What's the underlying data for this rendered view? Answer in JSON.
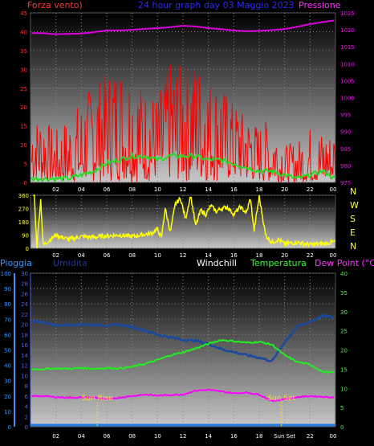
{
  "header": {
    "left": "Forza vento)",
    "center": "24 hour graph day  03 Maggio 2023",
    "right": "Pressione"
  },
  "colors": {
    "wind": "#ff0000",
    "gust_avg": "#22dd22",
    "pressure": "#dd00dd",
    "direction": "#ffff00",
    "humidity": "#1a4aa0",
    "temperature": "#22ee22",
    "dewpoint": "#ff00ff",
    "rain": "#1e7be0",
    "axis_left": "#ff3333",
    "axis_pressure": "#ff00ff",
    "axis_rain": "#3399ff",
    "axis_hum": "#4466ff",
    "axis_temp": "#33ff33",
    "sun": "#ffdd33"
  },
  "panel3_header": {
    "pioggia": "Pioggia",
    "umidita": "Umidita",
    "windchill": "Windchill",
    "temperatura": "Temperatura",
    "dewpoint": "Dew Point (°C)"
  },
  "x_ticks": [
    "02",
    "04",
    "06",
    "08",
    "10",
    "12",
    "14",
    "16",
    "18",
    "20",
    "22",
    "00"
  ],
  "x_ticks_bottom": [
    "02",
    "04",
    "06",
    "08",
    "10",
    "12",
    "14",
    "16",
    "18",
    "Sun Set",
    "22",
    "00"
  ],
  "direction_letters": [
    "N",
    "W",
    "S",
    "E",
    "N"
  ],
  "sun": {
    "rise_label": "Sun Rise",
    "set_label": "Sun Set",
    "rise_hour": 5.25,
    "set_hour": 19.75
  },
  "chart_data": [
    {
      "type": "line",
      "name_hint": "wind_pressure",
      "title": "24 hour graph day  03 Maggio 2023",
      "ylabel": "Forza vento)",
      "y2label": "Pressione",
      "ylim": [
        0,
        45
      ],
      "y2lim": [
        975,
        1025
      ],
      "yticks": [
        0,
        5,
        10,
        15,
        20,
        25,
        30,
        35,
        40,
        45
      ],
      "y2ticks": [
        975,
        980,
        985,
        990,
        995,
        1000,
        1005,
        1010,
        1015,
        1020,
        1025
      ],
      "x_hours": [
        1,
        2,
        3,
        4,
        5,
        6,
        7,
        8,
        9,
        10,
        11,
        12,
        13,
        14,
        15,
        16,
        17,
        18,
        19,
        20,
        21,
        22,
        23,
        24
      ],
      "series": [
        {
          "key": "wind",
          "values": [
            9,
            5,
            6,
            9,
            12,
            16,
            17,
            14,
            11,
            12,
            16,
            15,
            16,
            15,
            14,
            12,
            9,
            8,
            7,
            5,
            4,
            6,
            5,
            8
          ]
        },
        {
          "key": "wind_peak",
          "values": [
            17,
            14,
            18,
            22,
            27,
            29,
            32,
            30,
            25,
            23,
            32,
            31,
            33,
            28,
            26,
            21,
            18,
            15,
            18,
            10,
            11,
            15,
            14,
            12
          ]
        },
        {
          "key": "gust_avg",
          "values": [
            1,
            1,
            1,
            2,
            3,
            5,
            6,
            7,
            7,
            6,
            7,
            7,
            7,
            6,
            6,
            5,
            4,
            3,
            3,
            2,
            1,
            2,
            3,
            1
          ]
        },
        {
          "key": "pressure",
          "values": [
            1019,
            1018.7,
            1018.8,
            1018.9,
            1019.3,
            1019.8,
            1019.8,
            1020,
            1020.3,
            1020.5,
            1020.8,
            1021.2,
            1021,
            1020.5,
            1020.2,
            1019.8,
            1019.6,
            1019.7,
            1019.9,
            1020.2,
            1020.9,
            1021.7,
            1022.3,
            1022.8
          ]
        }
      ]
    },
    {
      "type": "line",
      "name_hint": "wind_direction",
      "ylim": [
        0,
        360
      ],
      "yticks": [
        0,
        90,
        180,
        270,
        360
      ],
      "x_hours": [
        0.3,
        0.5,
        0.8,
        1,
        2,
        3,
        4,
        5,
        6,
        7,
        8,
        9,
        9.5,
        10,
        10.3,
        10.6,
        11,
        11.4,
        11.8,
        12.2,
        12.6,
        13,
        13.4,
        13.8,
        14.2,
        14.6,
        15,
        15.5,
        16,
        16.5,
        17,
        17.3,
        17.6,
        18,
        18.5,
        19,
        19.5,
        20,
        21,
        22,
        23,
        24
      ],
      "values": [
        360,
        10,
        330,
        20,
        90,
        60,
        80,
        75,
        85,
        90,
        80,
        95,
        100,
        130,
        70,
        270,
        110,
        300,
        340,
        200,
        360,
        150,
        260,
        230,
        290,
        250,
        270,
        280,
        230,
        280,
        240,
        340,
        120,
        350,
        90,
        40,
        60,
        30,
        40,
        25,
        30,
        45
      ]
    },
    {
      "type": "line",
      "name_hint": "temp_humidity",
      "ylabel_left": "Pioggia",
      "ylim_rain": [
        0,
        100
      ],
      "yticks_rain": [
        0,
        10,
        20,
        30,
        40,
        50,
        60,
        70,
        80,
        90,
        100
      ],
      "ylim_hum": [
        0,
        30
      ],
      "yticks_hum": [
        0,
        2,
        4,
        6,
        8,
        10,
        12,
        14,
        16,
        18,
        20,
        22,
        24,
        26,
        28,
        30
      ],
      "ylim_temp": [
        0,
        40
      ],
      "yticks_temp": [
        0,
        5,
        10,
        15,
        20,
        25,
        30,
        35,
        40
      ],
      "x_hours": [
        1,
        2,
        3,
        4,
        5,
        6,
        7,
        8,
        9,
        10,
        11,
        12,
        13,
        14,
        15,
        16,
        17,
        18,
        19,
        20,
        21,
        22,
        23,
        24
      ],
      "series": [
        {
          "key": "humidity",
          "values": [
            20.5,
            19.8,
            19.9,
            20.0,
            19.9,
            19.8,
            19.9,
            19.5,
            18.8,
            18.0,
            17.5,
            17.0,
            16.8,
            16.2,
            15.2,
            14.6,
            14.0,
            13.5,
            12.8,
            16.5,
            19.5,
            20.5,
            21.7,
            21.3
          ]
        },
        {
          "key": "temperature",
          "values": [
            15,
            15.2,
            15.1,
            15.3,
            15.1,
            15.3,
            15.2,
            15.6,
            16.4,
            17.4,
            18.6,
            19.4,
            20.4,
            21.6,
            22.6,
            22.3,
            21.9,
            22.1,
            21.4,
            18.6,
            16.9,
            16.2,
            14.3,
            14.1
          ]
        },
        {
          "key": "dewpoint",
          "values": [
            8,
            7.7,
            7.6,
            7.6,
            7.7,
            7.1,
            7.6,
            8,
            8.4,
            8.1,
            8.3,
            8.4,
            9.4,
            9.6,
            9.2,
            8.7,
            8.9,
            8.4,
            6.7,
            7.2,
            7.7,
            8,
            7.8,
            7.6
          ]
        },
        {
          "key": "rain",
          "values": [
            0,
            0,
            0,
            0,
            0,
            0,
            0,
            0,
            0,
            0,
            0,
            0,
            0,
            0,
            0,
            0,
            0,
            0,
            0,
            0,
            0,
            0,
            0,
            0
          ]
        }
      ]
    }
  ]
}
